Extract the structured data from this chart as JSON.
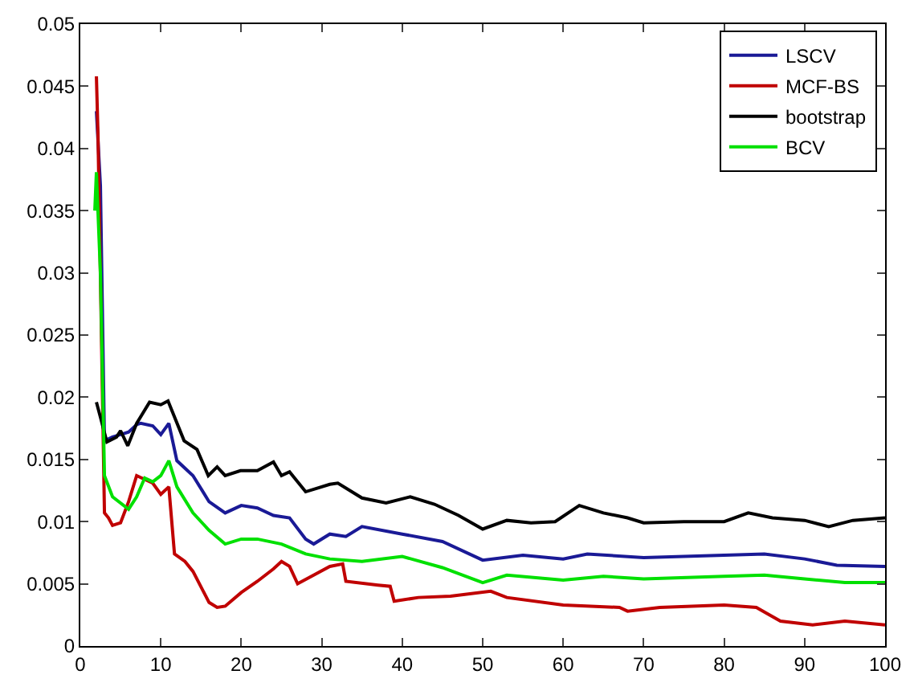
{
  "chart_data": {
    "type": "line",
    "xlim": [
      0,
      100
    ],
    "ylim": [
      0,
      0.05
    ],
    "xticks": [
      0,
      10,
      20,
      30,
      40,
      50,
      60,
      70,
      80,
      90,
      100
    ],
    "yticks": [
      0,
      0.005,
      0.01,
      0.015,
      0.02,
      0.025,
      0.03,
      0.035,
      0.04,
      0.045,
      0.05
    ],
    "legend": "top right",
    "marker": "none",
    "line_style": "solid",
    "series": [
      {
        "name": "LSCV",
        "color": "#1a1a96",
        "x": [
          2,
          2.5,
          3,
          4,
          5,
          6,
          7,
          7.5,
          9,
          10,
          11,
          12,
          14,
          16,
          18,
          20,
          22,
          24,
          26,
          28,
          29,
          31,
          33,
          35,
          40,
          45,
          50,
          55,
          60,
          63,
          70,
          80,
          85,
          90,
          94,
          100
        ],
        "values": [
          0.043,
          0.037,
          0.0165,
          0.0168,
          0.017,
          0.0172,
          0.0178,
          0.0179,
          0.0177,
          0.017,
          0.0179,
          0.0149,
          0.0137,
          0.0116,
          0.0107,
          0.0113,
          0.0111,
          0.0105,
          0.0103,
          0.0086,
          0.0082,
          0.009,
          0.0088,
          0.0096,
          0.009,
          0.0084,
          0.0069,
          0.0073,
          0.007,
          0.0074,
          0.0071,
          0.0073,
          0.0074,
          0.007,
          0.0065,
          0.0064
        ]
      },
      {
        "name": "MCF-BS",
        "color": "#c00000",
        "x": [
          2,
          2.2,
          3,
          3.5,
          4,
          5,
          6,
          7,
          9,
          10,
          11,
          11.7,
          13,
          14,
          16,
          17,
          18,
          20,
          22,
          24,
          25,
          26,
          27,
          29,
          31,
          32.6,
          33,
          37,
          38.5,
          39,
          42,
          46,
          51,
          53,
          60,
          67,
          68,
          72,
          80,
          84,
          87,
          91,
          95,
          100
        ],
        "values": [
          0.0458,
          0.041,
          0.0107,
          0.0103,
          0.0097,
          0.0099,
          0.0116,
          0.0137,
          0.0131,
          0.0122,
          0.0128,
          0.0074,
          0.0068,
          0.006,
          0.0035,
          0.0031,
          0.0032,
          0.0043,
          0.0052,
          0.0062,
          0.0068,
          0.0064,
          0.005,
          0.0057,
          0.0064,
          0.0066,
          0.0052,
          0.0049,
          0.0048,
          0.0036,
          0.0039,
          0.004,
          0.0044,
          0.0039,
          0.0033,
          0.0031,
          0.0028,
          0.0031,
          0.0033,
          0.0031,
          0.002,
          0.0017,
          0.002,
          0.0017
        ]
      },
      {
        "name": "bootstrap",
        "color": "#000000",
        "x": [
          2,
          2.5,
          3.3,
          4.5,
          5,
          5.9,
          7,
          8.6,
          10,
          10.9,
          12.9,
          14.5,
          15.9,
          17,
          18,
          19.9,
          22,
          24,
          25,
          26,
          28,
          31,
          32,
          35,
          38,
          41,
          44,
          47,
          50,
          53,
          56,
          59,
          62,
          65,
          68,
          70,
          75,
          80,
          83,
          86,
          90,
          93,
          96,
          100
        ],
        "values": [
          0.0196,
          0.0184,
          0.0164,
          0.0168,
          0.0173,
          0.0161,
          0.0179,
          0.0196,
          0.0194,
          0.0197,
          0.0165,
          0.0158,
          0.0137,
          0.0144,
          0.0137,
          0.0141,
          0.0141,
          0.0148,
          0.0137,
          0.014,
          0.0124,
          0.013,
          0.0131,
          0.0119,
          0.0115,
          0.012,
          0.0114,
          0.0105,
          0.0094,
          0.0101,
          0.0099,
          0.01,
          0.0113,
          0.0107,
          0.0103,
          0.0099,
          0.01,
          0.01,
          0.0107,
          0.0103,
          0.0101,
          0.0096,
          0.0101,
          0.0103
        ]
      },
      {
        "name": "BCV",
        "color": "#00e000",
        "x": [
          1.8,
          2,
          2.5,
          3,
          4,
          6,
          7,
          8,
          9,
          10,
          11,
          12,
          14,
          16,
          18,
          20,
          22,
          25,
          28,
          31,
          35,
          40,
          45,
          50,
          53,
          60,
          65,
          70,
          80,
          85,
          90,
          95,
          100
        ],
        "values": [
          0.035,
          0.0381,
          0.03,
          0.0137,
          0.012,
          0.011,
          0.012,
          0.0135,
          0.0132,
          0.0137,
          0.0149,
          0.0128,
          0.0107,
          0.0093,
          0.0082,
          0.0086,
          0.0086,
          0.0082,
          0.0074,
          0.007,
          0.0068,
          0.0072,
          0.0063,
          0.0051,
          0.0057,
          0.0053,
          0.0056,
          0.0054,
          0.0056,
          0.0057,
          0.0054,
          0.0051,
          0.0051
        ]
      }
    ]
  }
}
